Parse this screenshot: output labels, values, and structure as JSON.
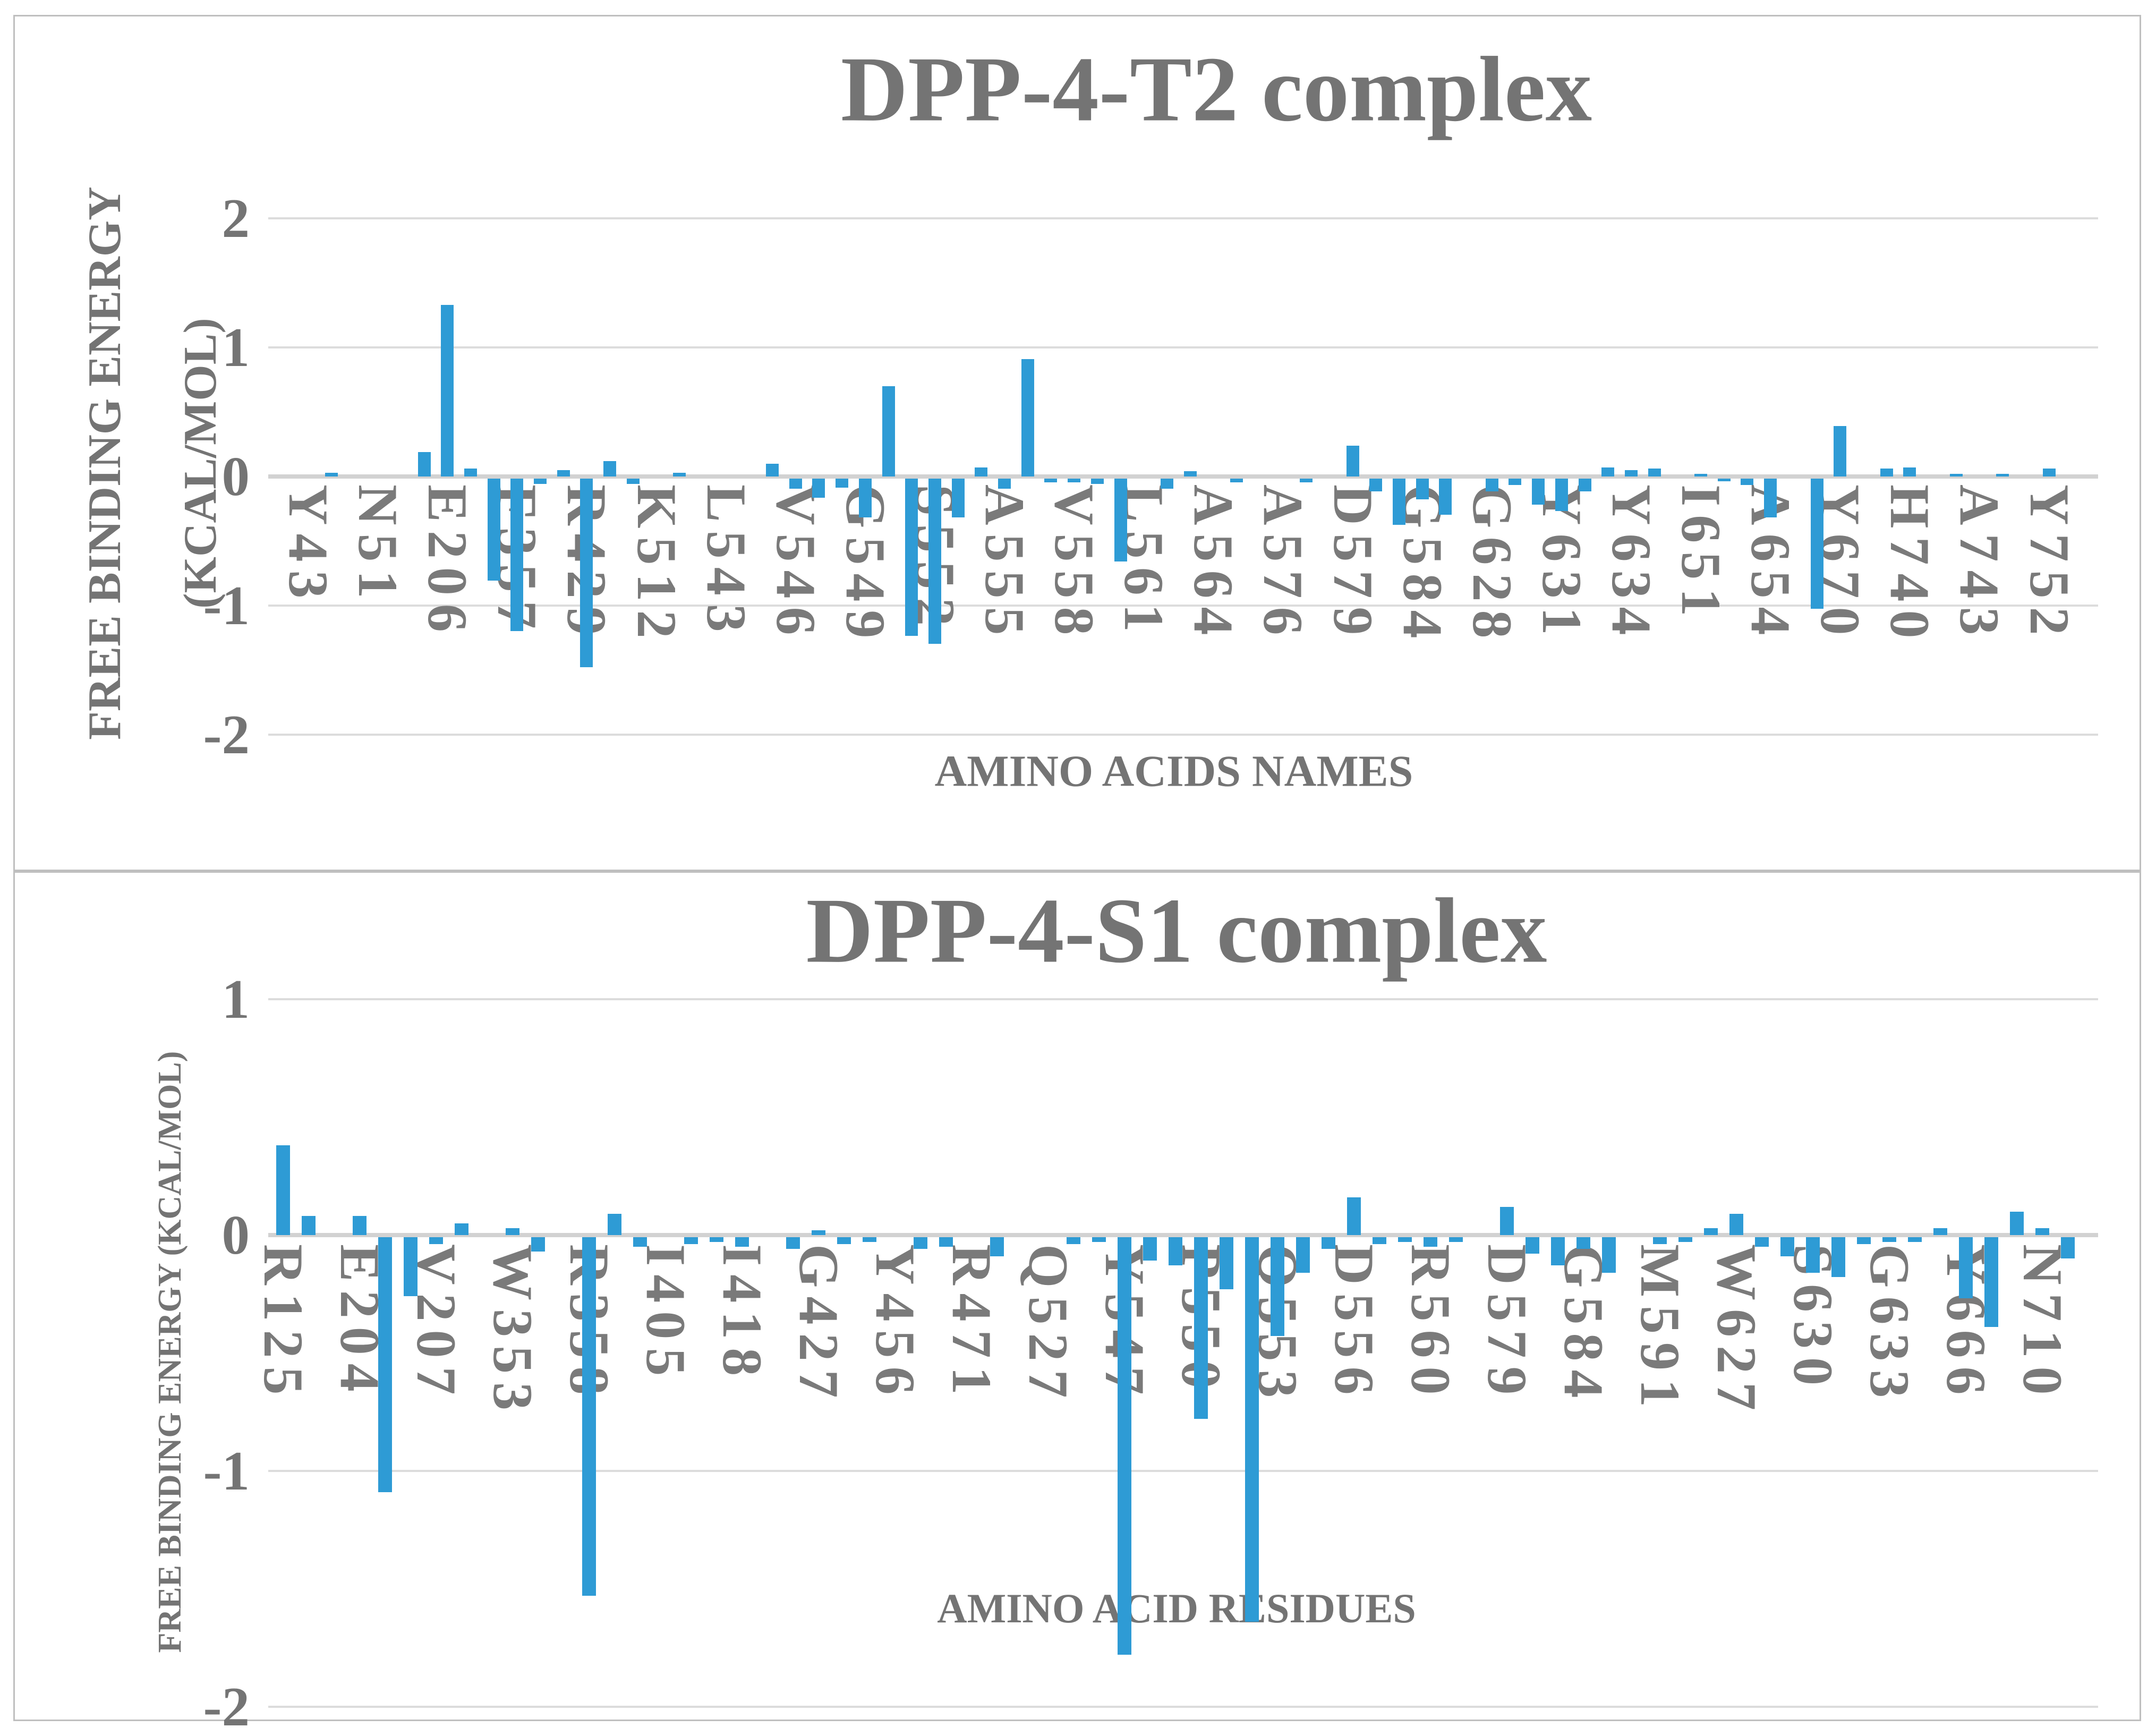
{
  "figure": {
    "top_title": "DPP-4-T2 complex",
    "bottom_title": "DPP-4-S1 complex"
  },
  "chart_data": [
    {
      "type": "bar",
      "title": "DPP-4-T2 complex",
      "xlabel": "AMINO ACIDS NAMES",
      "ylabel_lines": [
        "FREE BINDING ENERGY",
        "(KCAL/MOL)"
      ],
      "ylabel": "FREE BINDING ENERGY (KCAL/MOL)",
      "ylim": [
        -2,
        2
      ],
      "yticks": [
        2,
        1,
        0,
        -1,
        -2
      ],
      "grid": true,
      "legend": "none",
      "bar_color": "#2E9BD5",
      "categories": [
        "Y43",
        "",
        "",
        "N51",
        "",
        "",
        "E206",
        "",
        "",
        "F357",
        "",
        "",
        "R429",
        "",
        "",
        "K512",
        "",
        "",
        "L543",
        "",
        "",
        "V546",
        "",
        "",
        "G549",
        "",
        "",
        "S552",
        "",
        "",
        "A555",
        "",
        "",
        "V558",
        "",
        "",
        "L561",
        "",
        "",
        "A564",
        "",
        "",
        "A576",
        "",
        "",
        "D579",
        "",
        "",
        "G584",
        "",
        "",
        "G628",
        "",
        "",
        "Y631",
        "",
        "",
        "Y634",
        "",
        "",
        "I651",
        "",
        "",
        "A654",
        "",
        "",
        "Y670",
        "",
        "",
        "H740",
        "",
        "",
        "A743",
        "",
        "",
        "Y752",
        "",
        ""
      ],
      "values": [
        0,
        0.03,
        0,
        0,
        0,
        0.19,
        1.33,
        0.06,
        -0.79,
        -1.18,
        -0.04,
        0.05,
        -1.46,
        0.12,
        -0.04,
        0,
        0.03,
        0,
        0,
        0,
        0.1,
        -0.08,
        -0.15,
        -0.07,
        -0.3,
        0.7,
        -1.22,
        -1.28,
        -0.3,
        0.07,
        -0.08,
        0.91,
        -0.03,
        -0.03,
        -0.04,
        -0.64,
        0,
        -0.08,
        0.04,
        0,
        -0.03,
        0,
        0,
        -0.03,
        0,
        0.24,
        -0.1,
        -0.36,
        -0.16,
        -0.28,
        0,
        -0.1,
        -0.05,
        -0.2,
        -0.25,
        -0.1,
        0.07,
        0.05,
        0.06,
        0,
        0.02,
        -0.02,
        -0.05,
        -0.3,
        0,
        -1.01,
        0.39,
        0,
        0.06,
        0.07,
        0,
        0.02,
        0,
        0.02,
        0,
        0.06,
        0,
        0
      ]
    },
    {
      "type": "bar",
      "title": "DPP-4-S1 complex",
      "xlabel": "AMINO ACID RESIDUES",
      "ylabel_lines": [
        "FREE BINDING ENERGY (KCAL/MOL)"
      ],
      "ylabel": "FREE BINDING ENERGY (KCAL/MOL)",
      "ylim": [
        -2,
        1
      ],
      "yticks": [
        1,
        0,
        -1,
        -2
      ],
      "grid": true,
      "legend": "none",
      "bar_color": "#2E9BD5",
      "categories": [
        "R125",
        "",
        "",
        "E204",
        "",
        "",
        "V207",
        "",
        "",
        "W353",
        "",
        "",
        "R358",
        "",
        "",
        "I405",
        "",
        "",
        "I418",
        "",
        "",
        "G427",
        "",
        "",
        "Y456",
        "",
        "",
        "R471",
        "",
        "",
        "Q527",
        "",
        "",
        "Y547",
        "",
        "",
        "P550",
        "",
        "",
        "Q553",
        "",
        "",
        "D556",
        "",
        "",
        "R560",
        "",
        "",
        "D579",
        "",
        "",
        "G584",
        "",
        "",
        "M591",
        "",
        "",
        "W627",
        "",
        "",
        "S630",
        "",
        "",
        "G633",
        "",
        "",
        "Y666",
        "",
        "",
        "N710",
        "",
        ""
      ],
      "values": [
        0.38,
        0.08,
        0,
        0.08,
        -1.08,
        -0.25,
        -0.03,
        0.05,
        0,
        0.03,
        -0.06,
        0,
        -1.52,
        0.09,
        -0.04,
        0,
        -0.03,
        -0.02,
        -0.04,
        0,
        -0.05,
        0.02,
        -0.03,
        -0.02,
        0,
        -0.05,
        -0.04,
        0,
        -0.08,
        0,
        0,
        -0.03,
        -0.02,
        -1.77,
        -0.1,
        -0.12,
        -0.77,
        -0.22,
        -1.63,
        -0.42,
        -0.15,
        -0.05,
        0.16,
        -0.03,
        -0.02,
        -0.04,
        -0.02,
        0,
        0.12,
        -0.07,
        -0.12,
        -0.05,
        -0.15,
        0,
        -0.03,
        -0.02,
        0.03,
        0.09,
        -0.04,
        -0.08,
        -0.15,
        -0.17,
        -0.03,
        -0.02,
        -0.02,
        0.03,
        -0.26,
        -0.38,
        0.1,
        0.03,
        -0.09,
        0
      ]
    }
  ]
}
